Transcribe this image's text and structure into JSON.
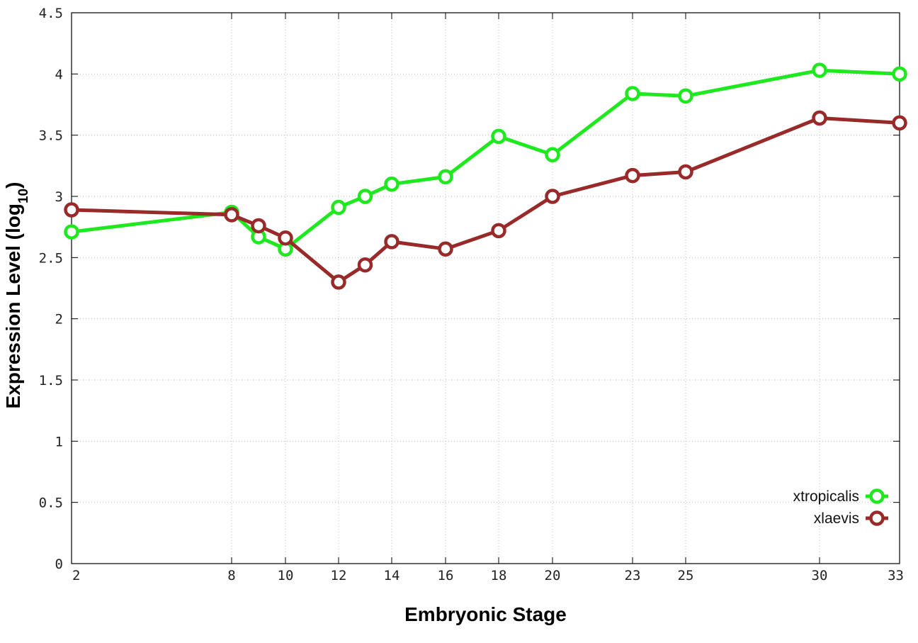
{
  "chart_data": {
    "type": "line",
    "xlabel": "Embryonic Stage",
    "ylabel_main": "Expression Level (log",
    "ylabel_sub": "10",
    "ylabel_end": ")",
    "x_ticks": [
      "2",
      "8",
      "10",
      "12",
      "14",
      "16",
      "18",
      "20",
      "23",
      "25",
      "30",
      "33"
    ],
    "x_tick_positions": [
      2,
      8,
      10,
      12,
      14,
      16,
      18,
      20,
      23,
      25,
      30,
      33
    ],
    "y_ticks": [
      "0",
      "0.5",
      "1",
      "1.5",
      "2",
      "2.5",
      "3",
      "3.5",
      "4",
      "4.5"
    ],
    "ylim": [
      0,
      4.5
    ],
    "grid": true,
    "legend_position": "bottom-right",
    "series": [
      {
        "name": "xtropicalis",
        "color": "#1ee81e",
        "x": [
          2,
          8,
          9,
          10,
          12,
          13,
          14,
          16,
          18,
          20,
          23,
          25,
          30,
          33
        ],
        "values": [
          2.71,
          2.87,
          2.67,
          2.57,
          2.91,
          3.0,
          3.1,
          3.16,
          3.49,
          3.34,
          3.84,
          3.82,
          4.03,
          4.0
        ]
      },
      {
        "name": "xlaevis",
        "color": "#992a2a",
        "x": [
          2,
          8,
          9,
          10,
          12,
          13,
          14,
          16,
          18,
          20,
          23,
          25,
          30,
          33
        ],
        "values": [
          2.89,
          2.85,
          2.76,
          2.66,
          2.3,
          2.44,
          2.63,
          2.57,
          2.72,
          3.0,
          3.17,
          3.2,
          3.64,
          3.6
        ]
      }
    ]
  }
}
